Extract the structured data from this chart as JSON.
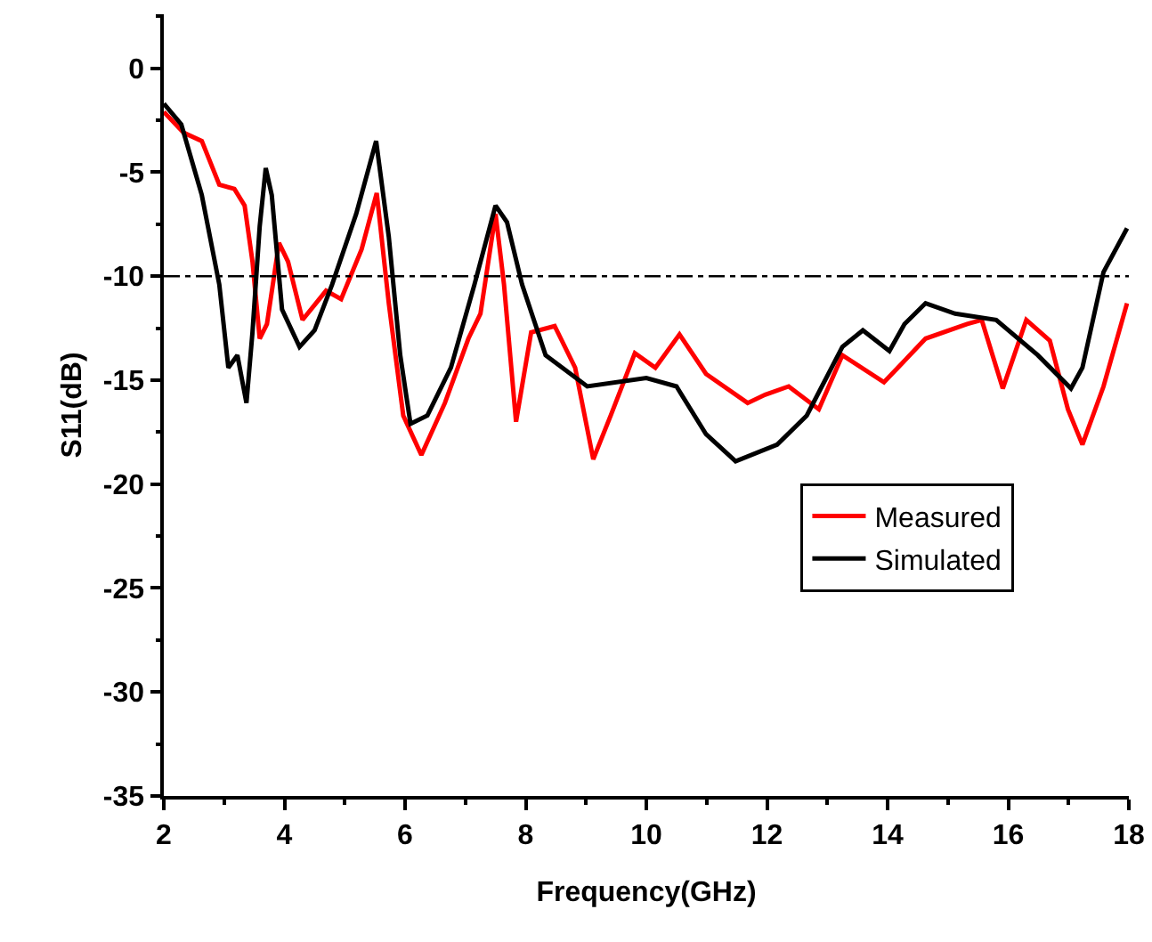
{
  "chart_data": {
    "type": "line",
    "xlabel": "Frequency(GHz)",
    "ylabel": "S11(dB)",
    "xlim": [
      2,
      18
    ],
    "xticks": [
      2,
      4,
      6,
      8,
      10,
      12,
      14,
      16,
      18
    ],
    "ylim": [
      -35,
      2.6
    ],
    "yticks": [
      -35,
      -30,
      -25,
      -20,
      -15,
      -10,
      -5,
      0
    ],
    "grid": false,
    "legend": "center right",
    "line_style": "solid",
    "series": [
      {
        "name": "Measured",
        "color": "#ff0000",
        "x": [
          2,
          2.33,
          2.63,
          2.92,
          3.17,
          3.34,
          3.47,
          3.59,
          3.71,
          3.91,
          4.06,
          4.3,
          4.69,
          4.94,
          5.28,
          5.53,
          5.73,
          5.97,
          6.27,
          6.66,
          7.05,
          7.25,
          7.5,
          7.64,
          7.84,
          8.09,
          8.48,
          8.82,
          9.12,
          9.41,
          9.81,
          10.15,
          10.55,
          10.99,
          11.68,
          11.97,
          12.36,
          12.86,
          13.25,
          13.94,
          14.63,
          15.32,
          15.56,
          15.91,
          16.3,
          16.69,
          16.99,
          17.23,
          17.58,
          17.97
        ],
        "values": [
          -2.1,
          -3.1,
          -3.5,
          -5.6,
          -5.8,
          -6.6,
          -9.3,
          -13,
          -12.3,
          -8.4,
          -9.3,
          -12.1,
          -10.7,
          -11.1,
          -8.7,
          -6,
          -11.3,
          -16.7,
          -18.6,
          -16.1,
          -13,
          -11.8,
          -7,
          -10.4,
          -17,
          -12.7,
          -12.4,
          -14.4,
          -18.8,
          -16.7,
          -13.7,
          -14.4,
          -12.8,
          -14.7,
          -16.1,
          -15.7,
          -15.3,
          -16.4,
          -13.8,
          -15.1,
          -13,
          -12.3,
          -12.1,
          -15.4,
          -12.1,
          -13.1,
          -16.4,
          -18.1,
          -15.3,
          -11.3
        ]
      },
      {
        "name": "Simulated",
        "color": "#000000",
        "x": [
          2,
          2.29,
          2.63,
          2.92,
          3.07,
          3.22,
          3.37,
          3.47,
          3.59,
          3.69,
          3.79,
          3.96,
          4.25,
          4.5,
          4.79,
          5.19,
          5.52,
          5.73,
          5.92,
          6.09,
          6.37,
          6.76,
          7.15,
          7.5,
          7.69,
          7.94,
          8.33,
          9.02,
          10,
          10.5,
          10.99,
          11.48,
          12.17,
          12.66,
          13.25,
          13.59,
          14.03,
          14.28,
          14.63,
          15.12,
          15.8,
          16.49,
          17.04,
          17.23,
          17.58,
          17.97
        ],
        "values": [
          -1.7,
          -2.7,
          -6.1,
          -10.4,
          -14.4,
          -13.8,
          -16.1,
          -12.7,
          -7.6,
          -4.8,
          -6.1,
          -11.6,
          -13.4,
          -12.6,
          -10.4,
          -7,
          -3.5,
          -8.1,
          -13.8,
          -17.1,
          -16.7,
          -14.4,
          -10.4,
          -6.6,
          -7.4,
          -10.4,
          -13.8,
          -15.3,
          -14.9,
          -15.3,
          -17.6,
          -18.9,
          -18.1,
          -16.7,
          -13.4,
          -12.6,
          -13.6,
          -12.3,
          -11.3,
          -11.8,
          -12.1,
          -13.8,
          -15.4,
          -14.4,
          -9.8,
          -7.7
        ]
      }
    ],
    "ref_lines": [
      {
        "axis": "y",
        "value": -10,
        "color": "#000000",
        "line_style": "dashed"
      }
    ]
  }
}
